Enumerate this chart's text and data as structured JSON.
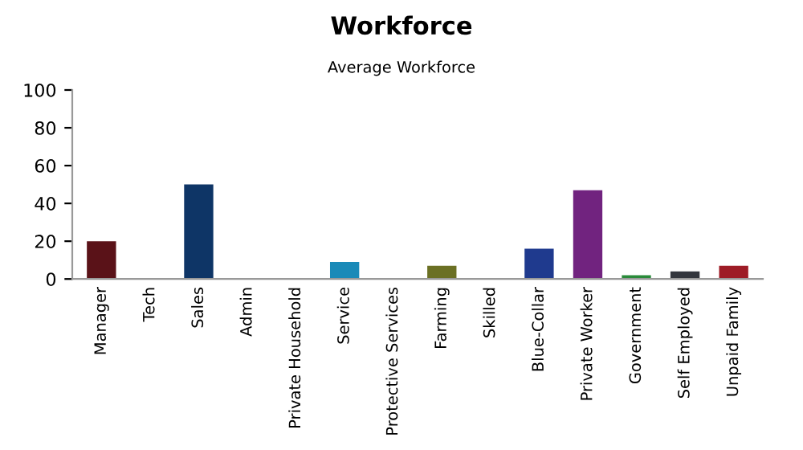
{
  "chart_data": {
    "type": "bar",
    "title": "Workforce",
    "subtitle": "Average Workforce",
    "categories": [
      "Manager",
      "Tech",
      "Sales",
      "Admin",
      "Private Household",
      "Service",
      "Protective Services",
      "Farming",
      "Skilled",
      "Blue-Collar",
      "Private Worker",
      "Government",
      "Self Employed",
      "Unpaid Family"
    ],
    "values": [
      20,
      0,
      50,
      0,
      0,
      9,
      0,
      7,
      0,
      16,
      47,
      2,
      4,
      7
    ],
    "colors": [
      "#5a1218",
      "#000000",
      "#0e3566",
      "#000000",
      "#000000",
      "#1a8ab8",
      "#000000",
      "#6b7024",
      "#000000",
      "#1f3a8e",
      "#71237f",
      "#2a8a3a",
      "#33363d",
      "#9e1c26"
    ],
    "ylim": [
      0,
      100
    ],
    "yticks": [
      0,
      20,
      40,
      60,
      80,
      100
    ],
    "grid": false
  }
}
